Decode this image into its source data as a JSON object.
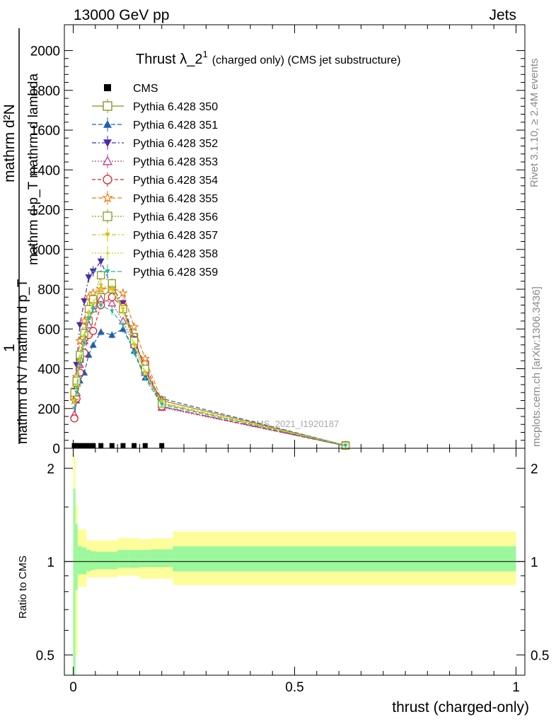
{
  "header": {
    "process": "13000 GeV pp",
    "category": "Jets",
    "rivet": "Rivet 3.1.10, ≥ 2.4M events",
    "mcplots": "mcplots.cern.ch [arXiv:1306.3436]",
    "watermark": "CMS_2021_I1920187"
  },
  "chart_data": [
    {
      "type": "line",
      "title": "Thrust λ_2",
      "title_sup": "1",
      "title_suffix": "(charged only) (CMS jet substructure)",
      "ylabel_numerator": "mathrm d²N",
      "ylabel_numerator_suffix": "mathrm d p_T mathrm d lambda",
      "ylabel_left": "1",
      "ylabel_denominator": "mathrm d N / mathrm d p_T",
      "xlim": [
        -0.02,
        1.02
      ],
      "ylim": [
        0,
        2130
      ],
      "yticks": [
        0,
        200,
        400,
        600,
        800,
        1000,
        1200,
        1400,
        1600,
        1800,
        2000
      ],
      "ytick_labels": [
        "0",
        "200",
        "400",
        "600",
        "800",
        "1000",
        "1200",
        "1400",
        "1600",
        "1800",
        "2000"
      ],
      "legend_placement": "top-left",
      "x": [
        0.0025,
        0.0075,
        0.015,
        0.025,
        0.035,
        0.045,
        0.0625,
        0.0875,
        0.1125,
        0.1375,
        0.1625,
        0.2,
        0.615
      ],
      "cms": [
        10,
        10,
        10,
        10,
        10,
        10,
        10,
        10,
        10,
        10,
        10,
        10
      ],
      "cms_x": [
        0.0025,
        0.0075,
        0.015,
        0.025,
        0.035,
        0.045,
        0.0625,
        0.0875,
        0.1125,
        0.1375,
        0.1625,
        0.2
      ],
      "series": [
        {
          "name": "CMS",
          "color": "#000000",
          "marker": "filled-square",
          "dash": "none"
        },
        {
          "name": "Pythia 6.428 350",
          "color": "#8b8b1a",
          "marker": "open-square",
          "dash": "solid",
          "values": [
            260,
            330,
            450,
            560,
            640,
            720,
            760,
            800,
            700,
            560,
            390,
            240,
            15
          ]
        },
        {
          "name": "Pythia 6.428 351",
          "color": "#1f5fb0",
          "marker": "filled-triangle-up",
          "dash": "6,3",
          "values": [
            160,
            240,
            340,
            380,
            470,
            520,
            585,
            570,
            600,
            490,
            355,
            250,
            15
          ]
        },
        {
          "name": "Pythia 6.428 352",
          "color": "#4a2cae",
          "marker": "filled-triangle-down",
          "dash": "6,3,2,3",
          "values": [
            290,
            420,
            620,
            740,
            860,
            890,
            940,
            810,
            730,
            550,
            400,
            210,
            12
          ]
        },
        {
          "name": "Pythia 6.428 353",
          "color": "#c0408a",
          "marker": "open-triangle-up",
          "dash": "2,2",
          "values": [
            170,
            280,
            420,
            540,
            620,
            700,
            750,
            730,
            640,
            520,
            380,
            205,
            12
          ]
        },
        {
          "name": "Pythia 6.428 354",
          "color": "#e0202a",
          "marker": "open-circle",
          "dash": "5,3",
          "values": [
            150,
            250,
            380,
            480,
            570,
            590,
            720,
            760,
            710,
            520,
            430,
            210,
            12
          ]
        },
        {
          "name": "Pythia 6.428 355",
          "color": "#f07a10",
          "marker": "open-star",
          "dash": "6,3",
          "values": [
            240,
            360,
            540,
            640,
            760,
            780,
            800,
            810,
            780,
            610,
            450,
            240,
            15
          ]
        },
        {
          "name": "Pythia 6.428 356",
          "color": "#8b9a1a",
          "marker": "open-square",
          "dash": "2,2",
          "values": [
            280,
            340,
            470,
            580,
            700,
            750,
            870,
            830,
            700,
            540,
            400,
            225,
            13
          ]
        },
        {
          "name": "Pythia 6.428 357",
          "color": "#d4c010",
          "marker": "filled-triangle-down-small",
          "dash": "6,3,2,3",
          "values": [
            230,
            300,
            440,
            560,
            680,
            720,
            820,
            800,
            700,
            520,
            380,
            230,
            15
          ]
        },
        {
          "name": "Pythia 6.428 358",
          "color": "#c8d820",
          "marker": "dot",
          "dash": "2,2",
          "values": [
            240,
            320,
            460,
            570,
            680,
            730,
            800,
            800,
            690,
            520,
            385,
            225,
            14
          ]
        },
        {
          "name": "Pythia 6.428 359",
          "color": "#20b8a0",
          "marker": "filled-triangle-down-small",
          "dash": "6,3",
          "values": [
            200,
            280,
            420,
            530,
            650,
            700,
            720,
            690,
            620,
            480,
            350,
            220,
            13
          ]
        }
      ]
    },
    {
      "type": "area",
      "ylabel": "Ratio to CMS",
      "xlabel": "thrust (charged-only)",
      "ylim": [
        0.43,
        2.32
      ],
      "ylog": true,
      "yticks": [
        0.5,
        1,
        2
      ],
      "ytick_labels": [
        "0.5",
        "1",
        "2"
      ],
      "xticks": [
        0,
        0.5,
        1
      ],
      "xtick_labels": [
        "0",
        "0.5",
        "1"
      ],
      "bins": [
        0,
        0.005,
        0.01,
        0.02,
        0.03,
        0.04,
        0.05,
        0.075,
        0.1,
        0.125,
        0.15,
        0.175,
        0.225,
        1.0
      ],
      "band_inner": [
        [
          0.43,
          1.72
        ],
        [
          0.81,
          1.32
        ],
        [
          0.91,
          1.12
        ],
        [
          0.91,
          1.11
        ],
        [
          0.93,
          1.09
        ],
        [
          0.94,
          1.08
        ],
        [
          0.945,
          1.075
        ],
        [
          0.945,
          1.075
        ],
        [
          0.955,
          1.09
        ],
        [
          0.955,
          1.09
        ],
        [
          0.96,
          1.09
        ],
        [
          0.96,
          1.095
        ],
        [
          0.93,
          1.12
        ]
      ],
      "band_outer": [
        [
          0.43,
          2.22
        ],
        [
          0.5,
          1.52
        ],
        [
          0.83,
          1.27
        ],
        [
          0.83,
          1.27
        ],
        [
          0.89,
          1.17
        ],
        [
          0.89,
          1.17
        ],
        [
          0.89,
          1.17
        ],
        [
          0.89,
          1.17
        ],
        [
          0.9,
          1.19
        ],
        [
          0.9,
          1.19
        ],
        [
          0.88,
          1.18
        ],
        [
          0.88,
          1.19
        ],
        [
          0.84,
          1.25
        ]
      ]
    }
  ]
}
